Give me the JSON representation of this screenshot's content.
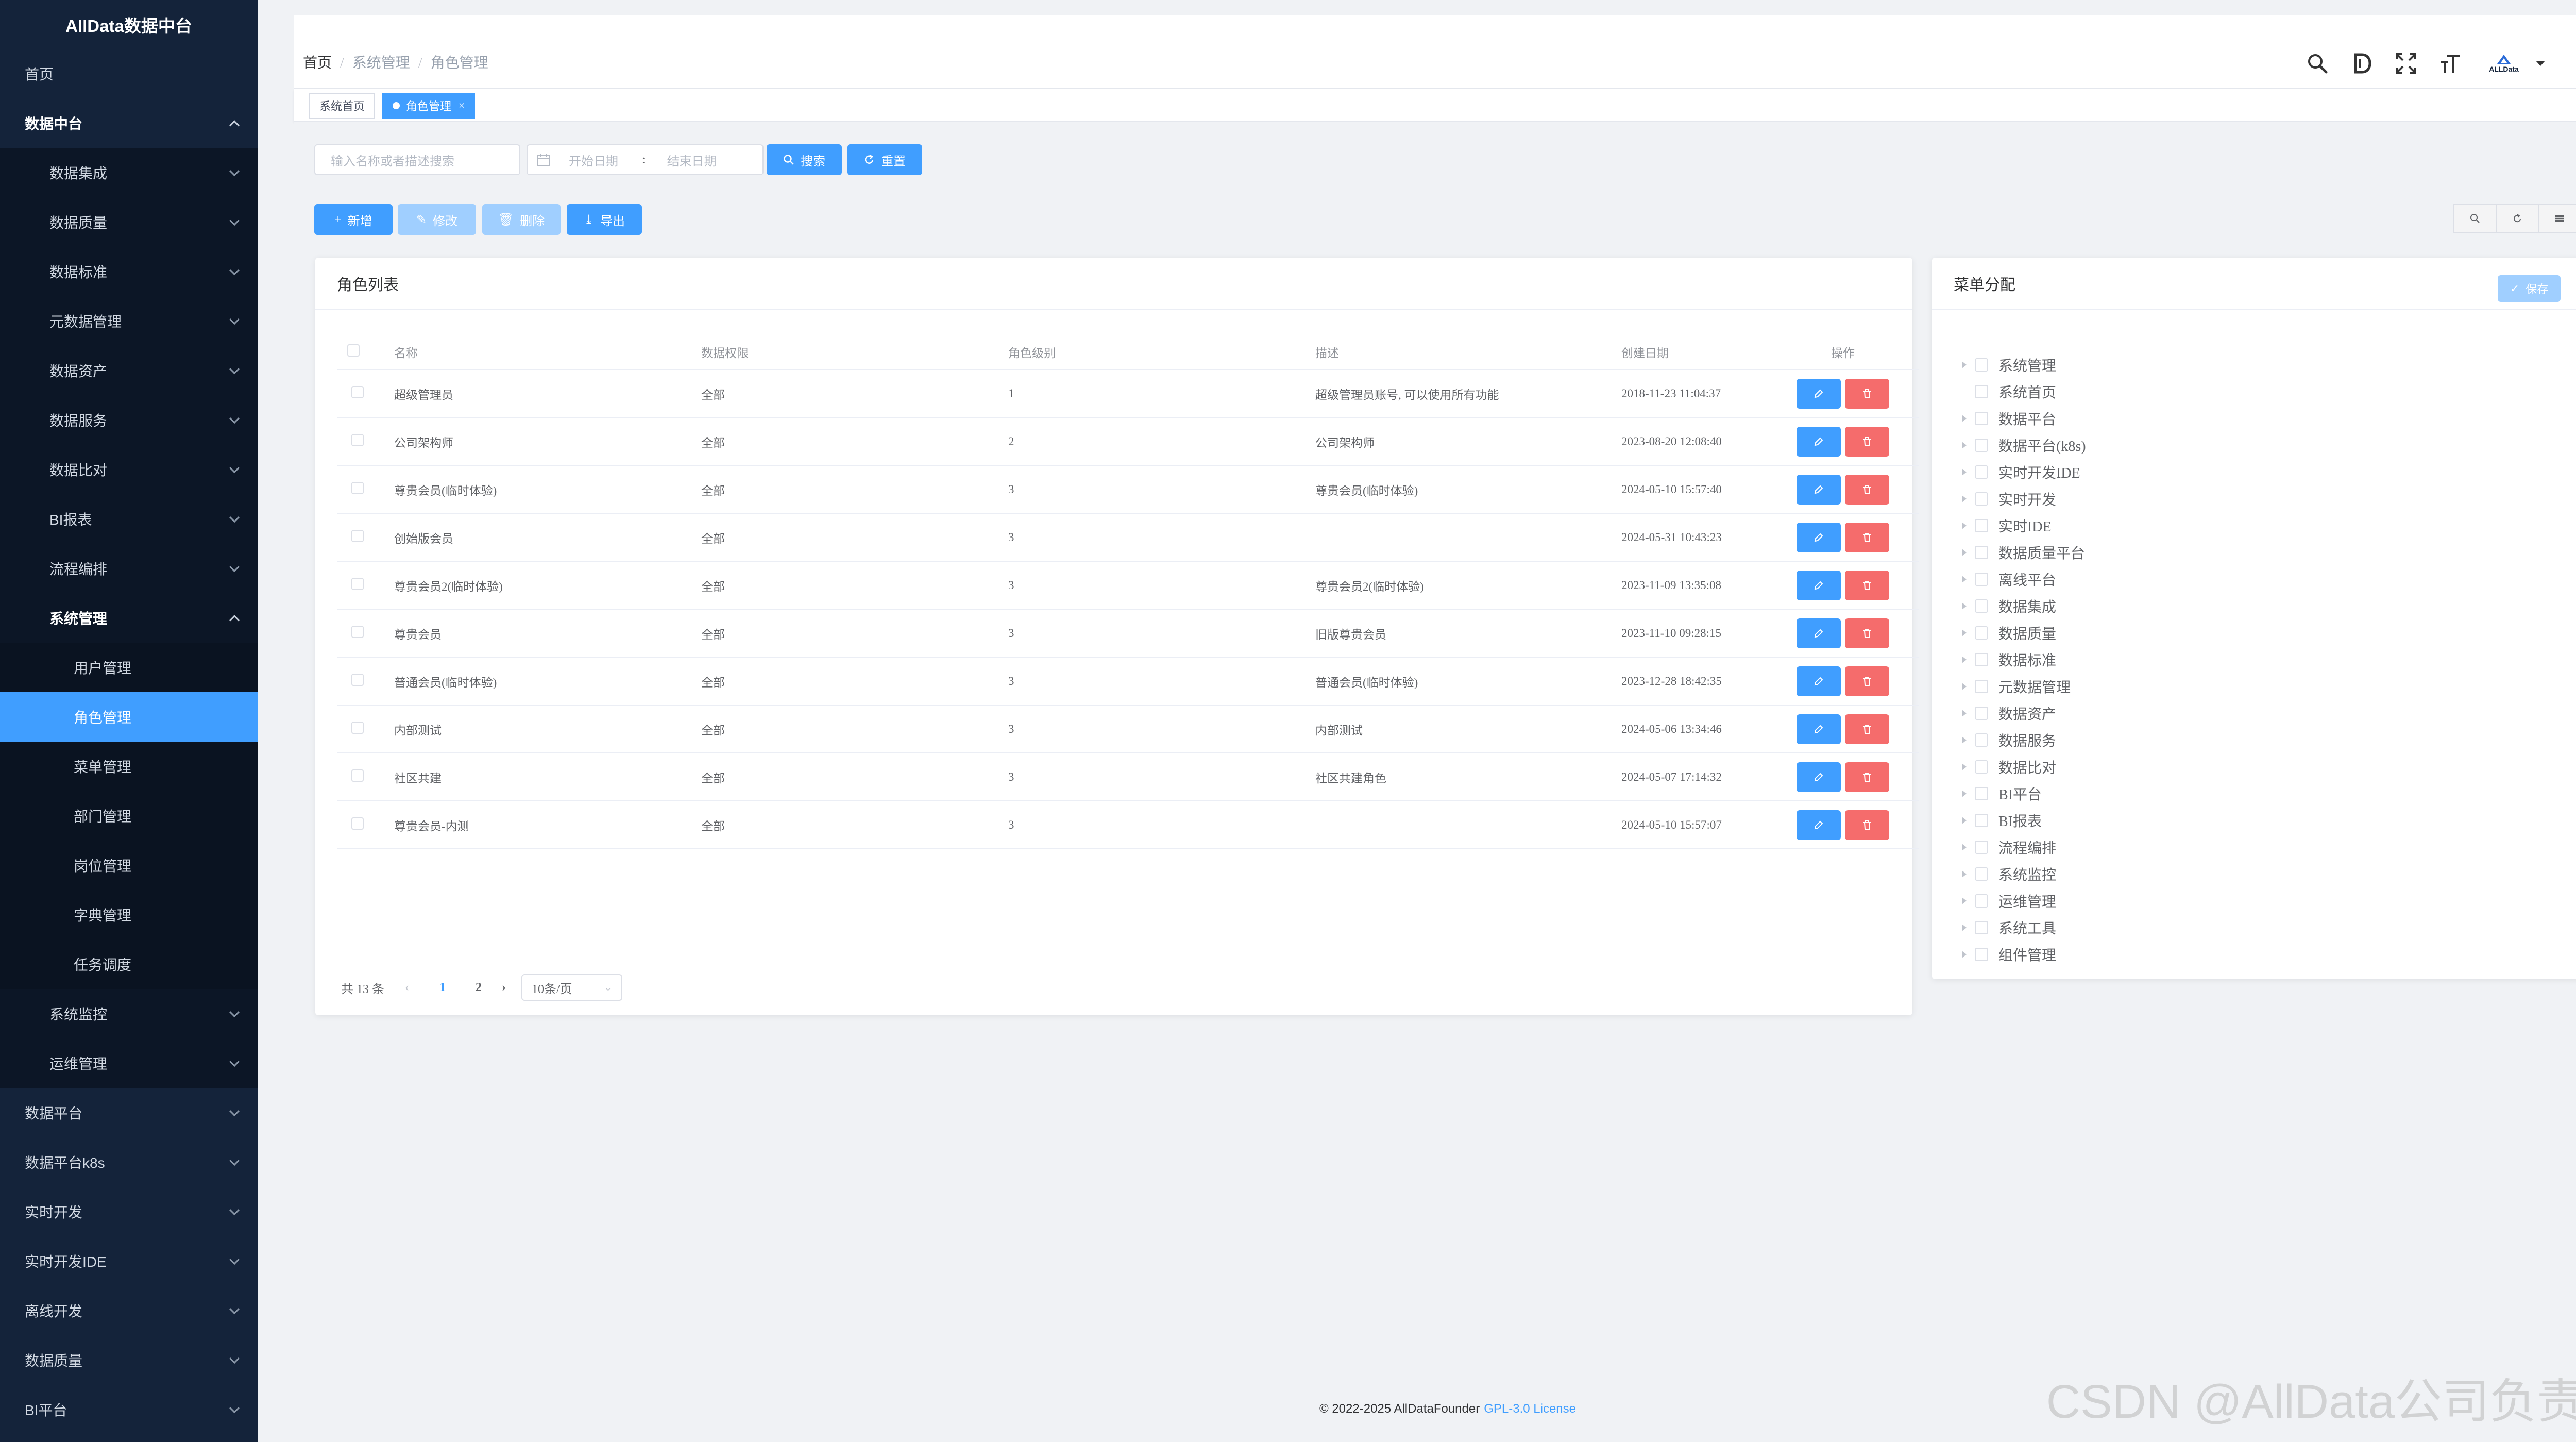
{
  "app_title": "AllData数据中台",
  "sidebar": {
    "items": [
      {
        "label": "首页",
        "level": 0,
        "arrow": "none"
      },
      {
        "label": "数据中台",
        "level": 0,
        "arrow": "up",
        "open": true
      },
      {
        "label": "数据集成",
        "level": 1,
        "arrow": "down"
      },
      {
        "label": "数据质量",
        "level": 1,
        "arrow": "down"
      },
      {
        "label": "数据标准",
        "level": 1,
        "arrow": "down"
      },
      {
        "label": "元数据管理",
        "level": 1,
        "arrow": "down"
      },
      {
        "label": "数据资产",
        "level": 1,
        "arrow": "down"
      },
      {
        "label": "数据服务",
        "level": 1,
        "arrow": "down"
      },
      {
        "label": "数据比对",
        "level": 1,
        "arrow": "down"
      },
      {
        "label": "BI报表",
        "level": 1,
        "arrow": "down"
      },
      {
        "label": "流程编排",
        "level": 1,
        "arrow": "down"
      },
      {
        "label": "系统管理",
        "level": 1,
        "arrow": "up",
        "open": true
      },
      {
        "label": "用户管理",
        "level": 2,
        "arrow": "none"
      },
      {
        "label": "角色管理",
        "level": 2,
        "arrow": "none",
        "active": true
      },
      {
        "label": "菜单管理",
        "level": 2,
        "arrow": "none"
      },
      {
        "label": "部门管理",
        "level": 2,
        "arrow": "none"
      },
      {
        "label": "岗位管理",
        "level": 2,
        "arrow": "none"
      },
      {
        "label": "字典管理",
        "level": 2,
        "arrow": "none"
      },
      {
        "label": "任务调度",
        "level": 2,
        "arrow": "none"
      },
      {
        "label": "系统监控",
        "level": 1,
        "arrow": "down"
      },
      {
        "label": "运维管理",
        "level": 1,
        "arrow": "down"
      },
      {
        "label": "数据平台",
        "level": 0,
        "arrow": "down"
      },
      {
        "label": "数据平台k8s",
        "level": 0,
        "arrow": "down"
      },
      {
        "label": "实时开发",
        "level": 0,
        "arrow": "down"
      },
      {
        "label": "实时开发IDE",
        "level": 0,
        "arrow": "down"
      },
      {
        "label": "离线开发",
        "level": 0,
        "arrow": "down"
      },
      {
        "label": "数据质量",
        "level": 0,
        "arrow": "down"
      },
      {
        "label": "BI平台",
        "level": 0,
        "arrow": "down"
      }
    ]
  },
  "breadcrumb": [
    "首页",
    "系统管理",
    "角色管理"
  ],
  "header_icons": [
    "search-icon",
    "document-icon",
    "fullscreen-icon",
    "font-size-icon"
  ],
  "avatar_text": "ALLData",
  "tags": [
    {
      "label": "系统首页",
      "active": false
    },
    {
      "label": "角色管理",
      "active": true,
      "close": "×"
    }
  ],
  "search": {
    "keyword_placeholder": "输入名称或者描述搜索",
    "start_date_placeholder": "开始日期",
    "date_separator": ":",
    "end_date_placeholder": "结束日期",
    "search_label": "搜索",
    "reset_label": "重置"
  },
  "actions": {
    "add_label": "新增",
    "edit_label": "修改",
    "delete_label": "删除",
    "export_label": "导出"
  },
  "role_list": {
    "title": "角色列表",
    "columns": [
      "名称",
      "数据权限",
      "角色级别",
      "描述",
      "创建日期",
      "操作"
    ],
    "rows": [
      [
        "超级管理员",
        "全部",
        "1",
        "超级管理员账号, 可以使用所有功能",
        "2018-11-23 11:04:37"
      ],
      [
        "公司架构师",
        "全部",
        "2",
        "公司架构师",
        "2023-08-20 12:08:40"
      ],
      [
        "尊贵会员(临时体验)",
        "全部",
        "3",
        "尊贵会员(临时体验)",
        "2024-05-10 15:57:40"
      ],
      [
        "创始版会员",
        "全部",
        "3",
        "",
        "2024-05-31 10:43:23"
      ],
      [
        "尊贵会员2(临时体验)",
        "全部",
        "3",
        "尊贵会员2(临时体验)",
        "2023-11-09 13:35:08"
      ],
      [
        "尊贵会员",
        "全部",
        "3",
        "旧版尊贵会员",
        "2023-11-10 09:28:15"
      ],
      [
        "普通会员(临时体验)",
        "全部",
        "3",
        "普通会员(临时体验)",
        "2023-12-28 18:42:35"
      ],
      [
        "内部测试",
        "全部",
        "3",
        "内部测试",
        "2024-05-06 13:34:46"
      ],
      [
        "社区共建",
        "全部",
        "3",
        "社区共建角色",
        "2024-05-07 17:14:32"
      ],
      [
        "尊贵会员-内测",
        "全部",
        "3",
        "",
        "2024-05-10 15:57:07"
      ]
    ]
  },
  "pagination": {
    "total_text": "共 13 条",
    "pages": [
      "1",
      "2"
    ],
    "current": "1",
    "page_size": "10条/页"
  },
  "menu_assign": {
    "title": "菜单分配",
    "save_label": "保存",
    "items": [
      {
        "label": "系统管理",
        "expandable": true
      },
      {
        "label": "系统首页",
        "expandable": false
      },
      {
        "label": "数据平台",
        "expandable": true
      },
      {
        "label": "数据平台(k8s)",
        "expandable": true
      },
      {
        "label": "实时开发IDE",
        "expandable": true
      },
      {
        "label": "实时开发",
        "expandable": true
      },
      {
        "label": "实时IDE",
        "expandable": true
      },
      {
        "label": "数据质量平台",
        "expandable": true
      },
      {
        "label": "离线平台",
        "expandable": true
      },
      {
        "label": "数据集成",
        "expandable": true
      },
      {
        "label": "数据质量",
        "expandable": true
      },
      {
        "label": "数据标准",
        "expandable": true
      },
      {
        "label": "元数据管理",
        "expandable": true
      },
      {
        "label": "数据资产",
        "expandable": true
      },
      {
        "label": "数据服务",
        "expandable": true
      },
      {
        "label": "数据比对",
        "expandable": true
      },
      {
        "label": "BI平台",
        "expandable": true
      },
      {
        "label": "BI报表",
        "expandable": true
      },
      {
        "label": "流程编排",
        "expandable": true
      },
      {
        "label": "系统监控",
        "expandable": true
      },
      {
        "label": "运维管理",
        "expandable": true
      },
      {
        "label": "系统工具",
        "expandable": true
      },
      {
        "label": "组件管理",
        "expandable": true
      }
    ]
  },
  "footer": {
    "copyright": "© 2022-2025 AllDataFounder",
    "license": "GPL-3.0 License"
  },
  "watermark": "CSDN @AllData公司负责人",
  "colors": {
    "primary": "#409eff",
    "danger": "#f56c6c",
    "sidebar_bg": "#14233a"
  }
}
